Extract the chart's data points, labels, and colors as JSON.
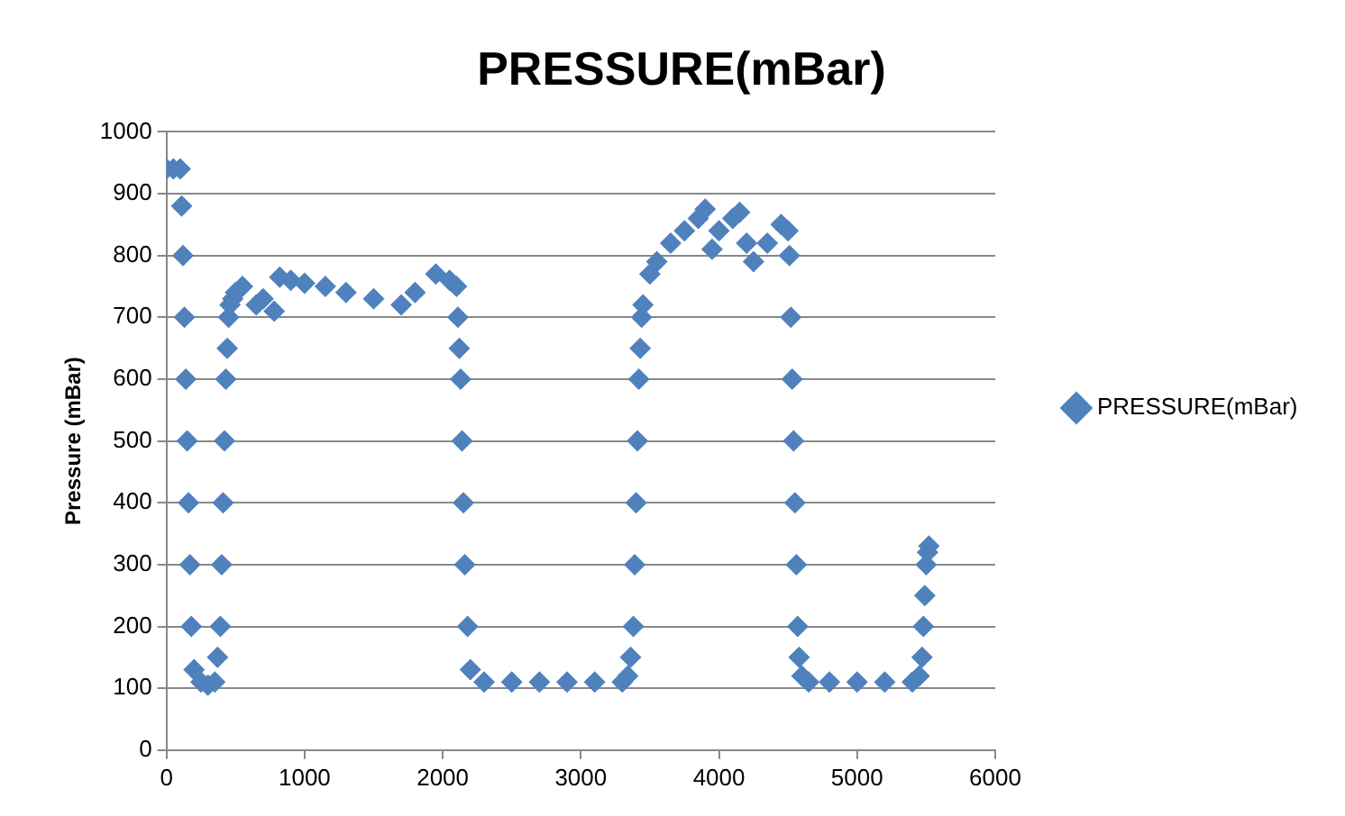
{
  "chart_data": {
    "type": "scatter",
    "title": "PRESSURE(mBar)",
    "ylabel": "Pressure (mBar)",
    "series": [
      {
        "name": "PRESSURE(mBar)",
        "color": "#4f81bd",
        "x": [
          0,
          50,
          100,
          110,
          120,
          130,
          140,
          150,
          160,
          170,
          180,
          200,
          250,
          300,
          350,
          370,
          390,
          400,
          410,
          420,
          430,
          440,
          450,
          460,
          480,
          500,
          550,
          650,
          700,
          780,
          820,
          900,
          1000,
          1150,
          1300,
          1500,
          1700,
          1800,
          1950,
          2050,
          2100,
          2110,
          2120,
          2130,
          2140,
          2150,
          2160,
          2180,
          2200,
          2300,
          2500,
          2700,
          2900,
          3100,
          3300,
          3340,
          3360,
          3380,
          3390,
          3400,
          3410,
          3420,
          3430,
          3440,
          3450,
          3500,
          3550,
          3650,
          3750,
          3850,
          3900,
          3950,
          4000,
          4100,
          4150,
          4200,
          4250,
          4350,
          4450,
          4500,
          4510,
          4520,
          4530,
          4540,
          4550,
          4560,
          4570,
          4580,
          4600,
          4650,
          4800,
          5000,
          5200,
          5400,
          5450,
          5470,
          5480,
          5490,
          5500,
          5510,
          5520
        ],
        "values": [
          940,
          940,
          940,
          880,
          800,
          700,
          600,
          500,
          400,
          300,
          200,
          130,
          110,
          105,
          110,
          150,
          200,
          300,
          400,
          500,
          600,
          650,
          700,
          720,
          730,
          740,
          750,
          720,
          730,
          710,
          765,
          760,
          755,
          750,
          740,
          730,
          720,
          740,
          770,
          760,
          750,
          700,
          650,
          600,
          500,
          400,
          300,
          200,
          130,
          110,
          110,
          110,
          110,
          110,
          110,
          120,
          150,
          200,
          300,
          400,
          500,
          600,
          650,
          700,
          720,
          770,
          790,
          820,
          840,
          860,
          875,
          810,
          840,
          860,
          870,
          820,
          790,
          820,
          850,
          840,
          800,
          700,
          600,
          500,
          400,
          300,
          200,
          150,
          120,
          110,
          110,
          110,
          110,
          110,
          120,
          150,
          200,
          250,
          300,
          320,
          330
        ]
      }
    ],
    "xlim": [
      0,
      6000
    ],
    "xticks": [
      0,
      1000,
      2000,
      3000,
      4000,
      5000,
      6000
    ],
    "ylim": [
      0,
      1000
    ],
    "yticks": [
      0,
      100,
      200,
      300,
      400,
      500,
      600,
      700,
      800,
      900,
      1000
    ],
    "grid": "y",
    "legend": "right",
    "marker": "diamond"
  }
}
